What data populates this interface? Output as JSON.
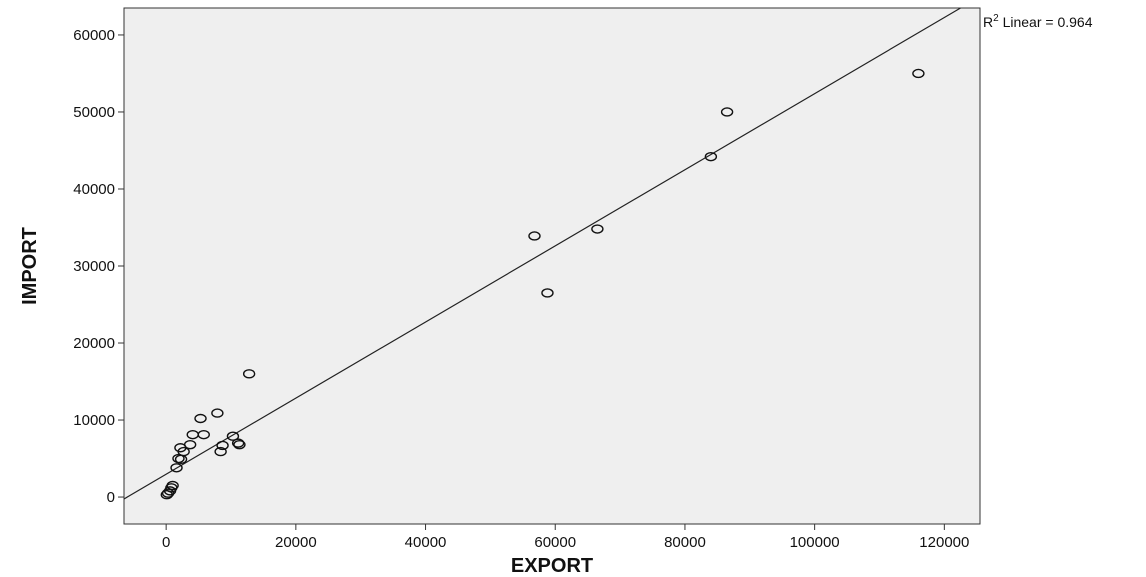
{
  "chart_data": {
    "type": "scatter",
    "xlabel": "EXPORT",
    "ylabel": "IMPORT",
    "xlim": [
      -6500,
      125500
    ],
    "ylim": [
      -3500,
      63500
    ],
    "xticks": [
      0,
      20000,
      40000,
      60000,
      80000,
      100000,
      120000
    ],
    "yticks": [
      0,
      10000,
      20000,
      30000,
      40000,
      50000,
      60000
    ],
    "grid": false,
    "background": "#efefef",
    "fit_line": {
      "label": "Linear",
      "r2_text": "= 0.964",
      "x": [
        -6500,
        122500
      ],
      "y": [
        -250,
        63500
      ]
    },
    "points": [
      {
        "x": 116000,
        "y": 55000
      },
      {
        "x": 86500,
        "y": 50000
      },
      {
        "x": 84000,
        "y": 44200
      },
      {
        "x": 66500,
        "y": 34800
      },
      {
        "x": 56800,
        "y": 33900
      },
      {
        "x": 58800,
        "y": 26500
      },
      {
        "x": 12800,
        "y": 16000
      },
      {
        "x": 7900,
        "y": 10900
      },
      {
        "x": 5300,
        "y": 10200
      },
      {
        "x": 4100,
        "y": 8100
      },
      {
        "x": 5800,
        "y": 8100
      },
      {
        "x": 10300,
        "y": 7900
      },
      {
        "x": 11100,
        "y": 7000
      },
      {
        "x": 11300,
        "y": 6800
      },
      {
        "x": 8700,
        "y": 6700
      },
      {
        "x": 8400,
        "y": 5900
      },
      {
        "x": 3700,
        "y": 6800
      },
      {
        "x": 2200,
        "y": 6400
      },
      {
        "x": 2700,
        "y": 5900
      },
      {
        "x": 1900,
        "y": 5000
      },
      {
        "x": 2300,
        "y": 4900
      },
      {
        "x": 1600,
        "y": 3800
      },
      {
        "x": 1000,
        "y": 1500
      },
      {
        "x": 800,
        "y": 1200
      },
      {
        "x": 600,
        "y": 800
      },
      {
        "x": 300,
        "y": 500
      },
      {
        "x": 100,
        "y": 300
      }
    ]
  }
}
